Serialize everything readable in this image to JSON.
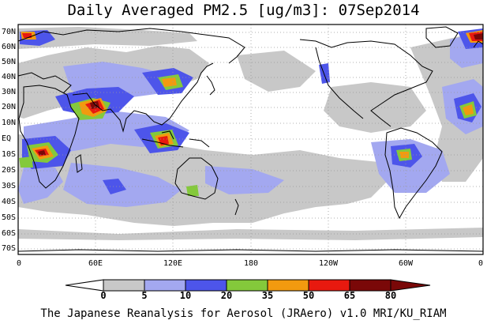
{
  "title": "Daily Averaged PM2.5 [ug/m3]: 07Sep2014",
  "footer": "The Japanese Reanalysis for Aerosol (JRAero) v1.0 MRI/KU_RIAM",
  "lat_labels": [
    "70N",
    "60N",
    "50N",
    "40N",
    "30N",
    "20N",
    "10N",
    "EQ",
    "10S",
    "20S",
    "30S",
    "40S",
    "50S",
    "60S",
    "70S"
  ],
  "lon_labels": [
    "0",
    "60E",
    "120E",
    "180",
    "120W",
    "60W",
    "0"
  ],
  "colorbar": {
    "labels": [
      "0",
      "5",
      "10",
      "20",
      "35",
      "50",
      "65",
      "80"
    ],
    "colors": [
      "#ffffff",
      "#c8c8c8",
      "#a3a8f0",
      "#4d55ea",
      "#84c93b",
      "#f29a0f",
      "#e8190f",
      "#7a0808"
    ]
  },
  "map_colors": {
    "land_outline": "#000000",
    "grid": "#999999"
  }
}
